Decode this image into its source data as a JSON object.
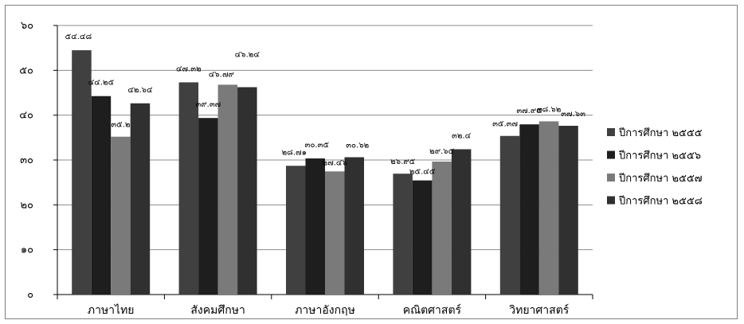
{
  "chart_data": {
    "type": "bar",
    "categories": [
      "ภาษาไทย",
      "สังคมศึกษา",
      "ภาษาอังกฤษ",
      "คณิตศาสตร์",
      "วิทยาศาสตร์"
    ],
    "series": [
      {
        "name": "ปีการศึกษา ๒๕๕๕",
        "color": "#404040",
        "values": [
          54.48,
          47.32,
          28.71,
          26.95,
          35.37
        ]
      },
      {
        "name": "ปีการศึกษา ๒๕๕๖",
        "color": "#1e1e1e",
        "values": [
          44.25,
          39.37,
          30.35,
          25.45,
          37.95
        ]
      },
      {
        "name": "ปีการศึกษา ๒๕๕๗",
        "color": "#7a7a7a",
        "values": [
          35.2,
          46.79,
          27.46,
          29.65,
          38.62
        ]
      },
      {
        "name": "ปีการศึกษา ๒๕๕๘",
        "color": "#303030",
        "values": [
          42.64,
          46.24,
          30.62,
          32.4,
          37.63
        ]
      }
    ],
    "data_labels": [
      [
        "๕๔.๔๘",
        "๔๗.๓๒",
        "๒๘.๗๑",
        "๒๖.๙๕",
        "๓๕.๓๗"
      ],
      [
        "๔๔.๒๕",
        "๓๙.๓๗",
        "๓๐.๓๕",
        "๒๕.๔๕",
        "๓๗.๙๕"
      ],
      [
        "๓๕.๒",
        "๔๖.๗๙",
        "๒๗.๔๖",
        "๒๙.๖๕",
        "๓๘.๖๒"
      ],
      [
        "๔๒.๖๔",
        "๔๖.๒๔",
        "๓๐.๖๒",
        "๓๒.๔",
        "๓๗.๖๓"
      ]
    ],
    "y_ticks": [
      0,
      10,
      20,
      30,
      40,
      50,
      60
    ],
    "y_tick_labels": [
      "๐",
      "๑๐",
      "๒๐",
      "๓๐",
      "๔๐",
      "๕๐",
      "๖๐"
    ],
    "ylim": [
      0,
      60
    ],
    "grid": true,
    "legend_position": "right",
    "title": "",
    "xlabel": "",
    "ylabel": ""
  }
}
